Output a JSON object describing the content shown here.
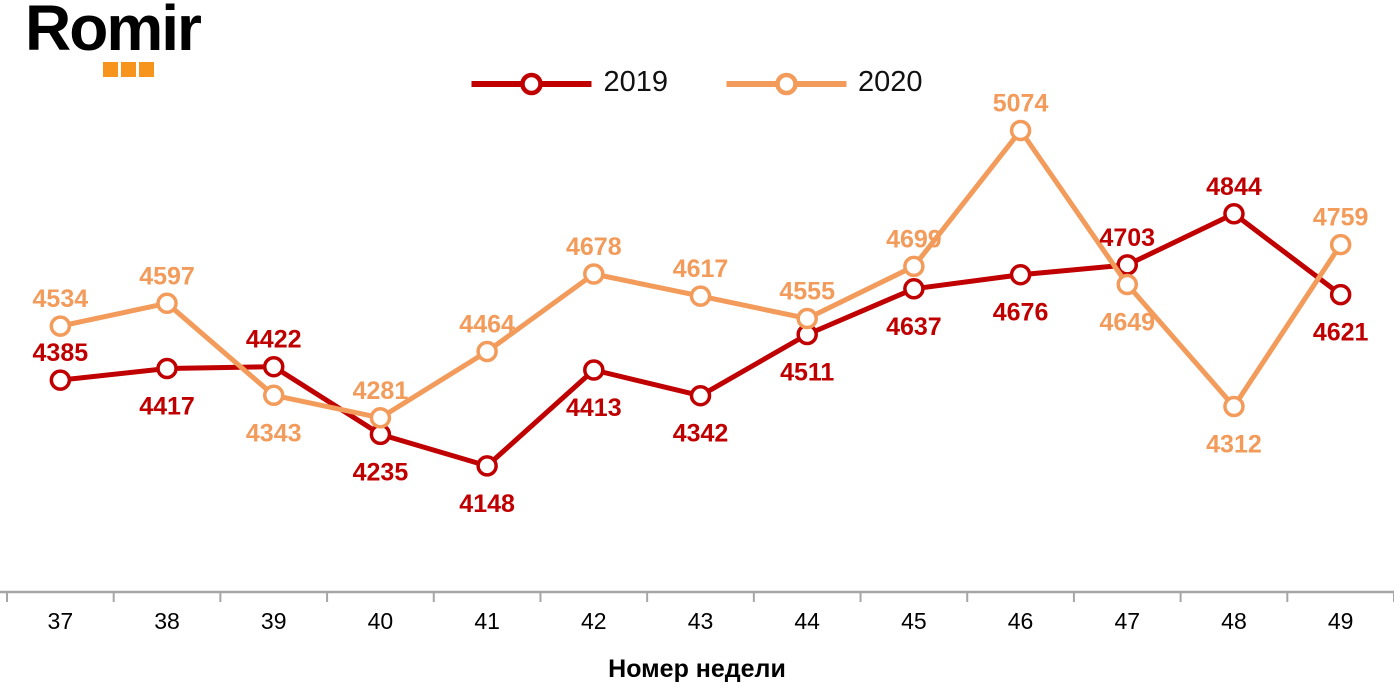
{
  "logo": {
    "text": "Romir",
    "dot_color": "#F7941D"
  },
  "chart_data": {
    "type": "line",
    "title": "",
    "categories": [
      "37",
      "38",
      "39",
      "40",
      "41",
      "42",
      "43",
      "44",
      "45",
      "46",
      "47",
      "48",
      "49"
    ],
    "series": [
      {
        "name": "2019",
        "color": "#C00000",
        "values": [
          4385,
          4417,
          4422,
          4235,
          4148,
          4413,
          4342,
          4511,
          4637,
          4676,
          4703,
          4844,
          4621
        ],
        "label_positions": [
          "above",
          "below",
          "above",
          "below",
          "below",
          "below",
          "below",
          "below",
          "below",
          "below",
          "above",
          "above",
          "below"
        ]
      },
      {
        "name": "2020",
        "color": "#F29B5B",
        "values": [
          4534,
          4597,
          4343,
          4281,
          4464,
          4678,
          4617,
          4555,
          4699,
          5074,
          4649,
          4312,
          4759
        ],
        "label_positions": [
          "above",
          "above",
          "below",
          "above",
          "above",
          "above",
          "above",
          "above",
          "above",
          "above",
          "below",
          "below",
          "above"
        ]
      }
    ],
    "xlabel": "Номер недели",
    "ylabel": "",
    "ylim": [
      3800,
      5150
    ],
    "grid": false,
    "data_labels": true,
    "legend_position": "top-center",
    "axis_color": "#A6A6A6",
    "tick_label_color": "#000000",
    "marker": "open-circle"
  }
}
